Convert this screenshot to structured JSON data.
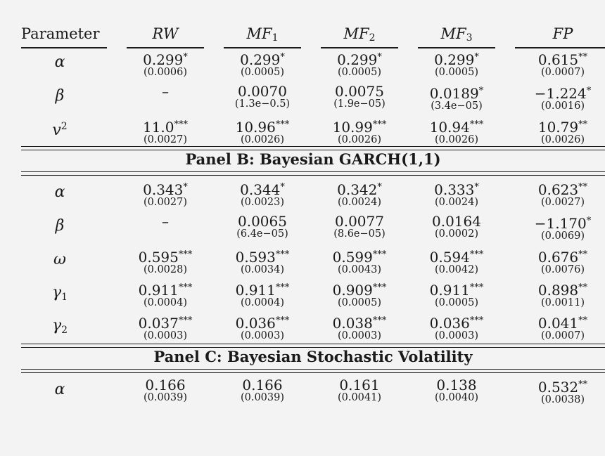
{
  "header": {
    "param": "Parameter",
    "columns": [
      {
        "base": "RW",
        "sub": ""
      },
      {
        "base": "MF",
        "sub": "1"
      },
      {
        "base": "MF",
        "sub": "2"
      },
      {
        "base": "MF",
        "sub": "3"
      },
      {
        "base": "FP",
        "sub": ""
      }
    ]
  },
  "panelA": {
    "rows": [
      {
        "sym": "α",
        "cells": [
          {
            "est": "0.299",
            "stars": "*",
            "se": "(0.0006)"
          },
          {
            "est": "0.299",
            "stars": "*",
            "se": "(0.0005)"
          },
          {
            "est": "0.299",
            "stars": "*",
            "se": "(0.0005)"
          },
          {
            "est": "0.299",
            "stars": "*",
            "se": "(0.0005)"
          },
          {
            "est": "0.615",
            "stars": "**",
            "se": "(0.0007)"
          }
        ]
      },
      {
        "sym": "β",
        "cells": [
          {
            "est": "–",
            "stars": "",
            "se": ""
          },
          {
            "est": "0.0070",
            "stars": "",
            "se": "(1.3e−0.5)"
          },
          {
            "est": "0.0075",
            "stars": "",
            "se": "(1.9e−05)"
          },
          {
            "est": "0.0189",
            "stars": "*",
            "se": "(3.4e−05)"
          },
          {
            "est": "−1.224",
            "stars": "*",
            "se": "(0.0016)"
          }
        ]
      },
      {
        "sym": "v",
        "sup": "2",
        "cells": [
          {
            "est": "11.0",
            "stars": "***",
            "se": "(0.0027)"
          },
          {
            "est": "10.96",
            "stars": "***",
            "se": "(0.0026)"
          },
          {
            "est": "10.99",
            "stars": "***",
            "se": "(0.0026)"
          },
          {
            "est": "10.94",
            "stars": "***",
            "se": "(0.0026)"
          },
          {
            "est": "10.79",
            "stars": "**",
            "se": "(0.0026)"
          }
        ]
      }
    ]
  },
  "panelB": {
    "title": "Panel B: Bayesian GARCH(1,1)",
    "rows": [
      {
        "sym": "α",
        "cells": [
          {
            "est": "0.343",
            "stars": "*",
            "se": "(0.0027)"
          },
          {
            "est": "0.344",
            "stars": "*",
            "se": "(0.0023)"
          },
          {
            "est": "0.342",
            "stars": "*",
            "se": "(0.0024)"
          },
          {
            "est": "0.333",
            "stars": "*",
            "se": "(0.0024)"
          },
          {
            "est": "0.623",
            "stars": "**",
            "se": "(0.0027)"
          }
        ]
      },
      {
        "sym": "β",
        "cells": [
          {
            "est": "–",
            "stars": "",
            "se": ""
          },
          {
            "est": "0.0065",
            "stars": "",
            "se": "(6.4e−05)"
          },
          {
            "est": "0.0077",
            "stars": "",
            "se": "(8.6e−05)"
          },
          {
            "est": "0.0164",
            "stars": "",
            "se": "(0.0002)"
          },
          {
            "est": "−1.170",
            "stars": "*",
            "se": "(0.0069)"
          }
        ]
      },
      {
        "sym": "ω",
        "cells": [
          {
            "est": "0.595",
            "stars": "***",
            "se": "(0.0028)"
          },
          {
            "est": "0.593",
            "stars": "***",
            "se": "(0.0034)"
          },
          {
            "est": "0.599",
            "stars": "***",
            "se": "(0.0043)"
          },
          {
            "est": "0.594",
            "stars": "***",
            "se": "(0.0042)"
          },
          {
            "est": "0.676",
            "stars": "**",
            "se": "(0.0076)"
          }
        ]
      },
      {
        "sym": "γ",
        "sub": "1",
        "cells": [
          {
            "est": "0.911",
            "stars": "***",
            "se": "(0.0004)"
          },
          {
            "est": "0.911",
            "stars": "***",
            "se": "(0.0004)"
          },
          {
            "est": "0.909",
            "stars": "***",
            "se": "(0.0005)"
          },
          {
            "est": "0.911",
            "stars": "***",
            "se": "(0.0005)"
          },
          {
            "est": "0.898",
            "stars": "**",
            "se": "(0.0011)"
          }
        ]
      },
      {
        "sym": "γ",
        "sub": "2",
        "cells": [
          {
            "est": "0.037",
            "stars": "***",
            "se": "(0.0003)"
          },
          {
            "est": "0.036",
            "stars": "***",
            "se": "(0.0003)"
          },
          {
            "est": "0.038",
            "stars": "***",
            "se": "(0.0003)"
          },
          {
            "est": "0.036",
            "stars": "***",
            "se": "(0.0003)"
          },
          {
            "est": "0.041",
            "stars": "**",
            "se": "(0.0007)"
          }
        ]
      }
    ]
  },
  "panelC": {
    "title": "Panel C: Bayesian Stochastic Volatility",
    "rows": [
      {
        "sym": "α",
        "cells": [
          {
            "est": "0.166",
            "stars": "",
            "se": "(0.0039)"
          },
          {
            "est": "0.166",
            "stars": "",
            "se": "(0.0039)"
          },
          {
            "est": "0.161",
            "stars": "",
            "se": "(0.0041)"
          },
          {
            "est": "0.138",
            "stars": "",
            "se": "(0.0040)"
          },
          {
            "est": "0.532",
            "stars": "**",
            "se": "(0.0038)"
          }
        ]
      }
    ]
  }
}
